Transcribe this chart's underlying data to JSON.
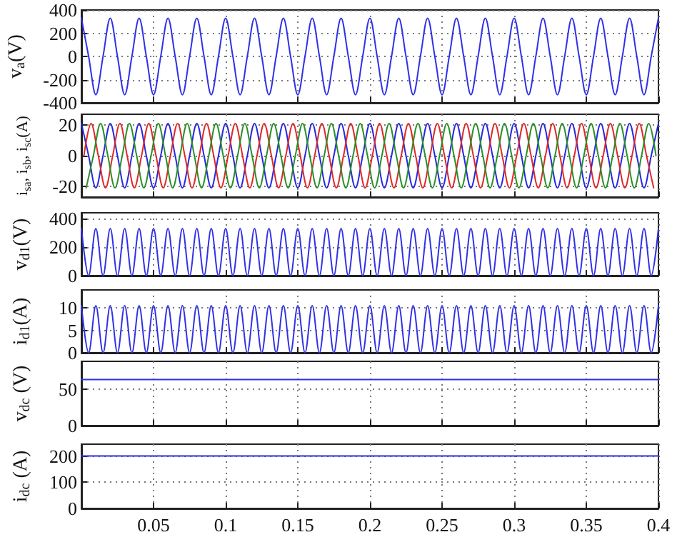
{
  "chart_data": [
    {
      "type": "line",
      "ylabel": "v$_{a}$(V)",
      "xlim": [
        0,
        0.4
      ],
      "xticks": [
        0.05,
        0.1,
        0.15,
        0.2,
        0.25,
        0.3,
        0.35,
        0.4
      ],
      "ylim": [
        -400,
        400
      ],
      "yticks": [
        -400,
        -200,
        0,
        200,
        400
      ],
      "grid": true,
      "tick_labels": "y",
      "line_style": "solid",
      "series": [
        {
          "color": "#3030e8",
          "x": [
            0,
            0.005,
            0.01,
            0.015,
            0.02,
            0.025,
            0.03,
            0.035,
            0.04,
            0.045,
            0.05,
            0.055,
            0.06,
            0.065,
            0.07,
            0.075,
            0.08,
            0.085,
            0.09,
            0.095,
            0.1,
            0.105,
            0.11,
            0.115,
            0.12,
            0.125,
            0.13,
            0.135,
            0.14,
            0.145,
            0.15,
            0.155,
            0.16,
            0.165,
            0.17,
            0.175,
            0.18,
            0.185,
            0.19,
            0.195,
            0.2,
            0.205,
            0.21,
            0.215,
            0.22,
            0.225,
            0.23,
            0.235,
            0.24,
            0.245,
            0.25,
            0.255,
            0.26,
            0.265,
            0.27,
            0.275,
            0.28,
            0.285,
            0.29,
            0.295,
            0.3,
            0.305,
            0.31,
            0.315,
            0.32,
            0.325,
            0.33,
            0.335,
            0.34,
            0.345,
            0.35,
            0.355,
            0.36,
            0.365,
            0.37,
            0.375,
            0.38,
            0.385,
            0.39,
            0.395,
            0.4
          ],
          "values": [
            330,
            0,
            -330,
            0,
            330,
            0,
            -330,
            0,
            330,
            0,
            -330,
            0,
            330,
            0,
            -330,
            0,
            330,
            0,
            -330,
            0,
            330,
            0,
            -330,
            0,
            330,
            0,
            -330,
            0,
            330,
            0,
            -330,
            0,
            330,
            0,
            -330,
            0,
            330,
            0,
            -330,
            0,
            330,
            0,
            -330,
            0,
            330,
            0,
            -330,
            0,
            330,
            0,
            -330,
            0,
            330,
            0,
            -330,
            0,
            330,
            0,
            -330,
            0,
            330,
            0,
            -330,
            0,
            330,
            0,
            -330,
            0,
            330,
            0,
            -330,
            0,
            330,
            0,
            -330,
            0,
            330,
            0,
            -330,
            0,
            330
          ]
        }
      ]
    },
    {
      "type": "line",
      "ylabel": "i$_{sa}$, i$_{sb}$, i$_{sc}$(A)",
      "xlim": [
        0,
        0.4
      ],
      "xticks": [
        0.05,
        0.1,
        0.15,
        0.2,
        0.25,
        0.3,
        0.35,
        0.4
      ],
      "ylim": [
        -27,
        27
      ],
      "yticks": [
        -20,
        0,
        20
      ],
      "grid": true,
      "tick_labels": "y",
      "line_style": "solid",
      "series": [
        {
          "color": "#2828e0",
          "x": [
            0,
            0.005,
            0.01,
            0.015,
            0.02,
            0.025,
            0.03,
            0.035,
            0.04,
            0.045,
            0.05,
            0.055,
            0.06,
            0.065,
            0.07,
            0.075,
            0.08,
            0.085,
            0.09,
            0.095,
            0.1,
            0.105,
            0.11,
            0.115,
            0.12,
            0.125,
            0.13,
            0.135,
            0.14,
            0.145,
            0.15,
            0.155,
            0.16,
            0.165,
            0.17,
            0.175,
            0.18,
            0.185,
            0.19,
            0.195,
            0.2,
            0.205,
            0.21,
            0.215,
            0.22,
            0.225,
            0.23,
            0.235,
            0.24,
            0.245,
            0.25,
            0.255,
            0.26,
            0.265,
            0.27,
            0.275,
            0.28,
            0.285,
            0.29,
            0.295,
            0.3,
            0.305,
            0.31,
            0.315,
            0.32,
            0.325,
            0.33,
            0.335,
            0.34,
            0.345,
            0.35,
            0.355,
            0.36,
            0.365,
            0.37,
            0.375,
            0.38,
            0.385,
            0.39,
            0.395,
            0.4
          ],
          "values": [
            21,
            0,
            -21,
            0,
            21,
            0,
            -21,
            0,
            21,
            0,
            -21,
            0,
            21,
            0,
            -21,
            0,
            21,
            0,
            -21,
            0,
            21,
            0,
            -21,
            0,
            21,
            0,
            -21,
            0,
            21,
            0,
            -21,
            0,
            21,
            0,
            -21,
            0,
            21,
            0,
            -21,
            0,
            21,
            0,
            -21,
            0,
            21,
            0,
            -21,
            0,
            21,
            0,
            -21,
            0,
            21,
            0,
            -21,
            0,
            21,
            0,
            -21,
            0,
            21,
            0,
            -21,
            0,
            21,
            0,
            -21,
            0,
            21,
            0,
            -21,
            0,
            21,
            0,
            -21,
            0,
            21,
            0,
            -21,
            0,
            21
          ]
        },
        {
          "color": "#e02828",
          "x": [
            0.0017,
            0.0067,
            0.0117,
            0.0167,
            0.0217,
            0.0267,
            0.0317,
            0.0367,
            0.0417,
            0.0467,
            0.0517,
            0.0567,
            0.0617,
            0.0667,
            0.0717,
            0.0767,
            0.0817,
            0.0867,
            0.0917,
            0.0967,
            0.1017,
            0.1067,
            0.1117,
            0.1167,
            0.1217,
            0.1267,
            0.1317,
            0.1367,
            0.1417,
            0.1467,
            0.1517,
            0.1567,
            0.1617,
            0.1667,
            0.1717,
            0.1767,
            0.1817,
            0.1867,
            0.1917,
            0.1967,
            0.2017,
            0.2067,
            0.2117,
            0.2167,
            0.2217,
            0.2267,
            0.2317,
            0.2367,
            0.2417,
            0.2467,
            0.2517,
            0.2567,
            0.2617,
            0.2667,
            0.2717,
            0.2767,
            0.2817,
            0.2867,
            0.2917,
            0.2967,
            0.3017,
            0.3067,
            0.3117,
            0.3167,
            0.3217,
            0.3267,
            0.3317,
            0.3367,
            0.3417,
            0.3467,
            0.3517,
            0.3567,
            0.3617,
            0.3667,
            0.3717,
            0.3767,
            0.3817,
            0.3867,
            0.3917,
            0.3967
          ],
          "values": [
            0,
            21,
            0,
            -21,
            0,
            21,
            0,
            -21,
            0,
            21,
            0,
            -21,
            0,
            21,
            0,
            -21,
            0,
            21,
            0,
            -21,
            0,
            21,
            0,
            -21,
            0,
            21,
            0,
            -21,
            0,
            21,
            0,
            -21,
            0,
            21,
            0,
            -21,
            0,
            21,
            0,
            -21,
            0,
            21,
            0,
            -21,
            0,
            21,
            0,
            -21,
            0,
            21,
            0,
            -21,
            0,
            21,
            0,
            -21,
            0,
            21,
            0,
            -21,
            0,
            21,
            0,
            -21,
            0,
            21,
            0,
            -21,
            0,
            21,
            0,
            -21,
            0,
            21,
            0,
            -21,
            0,
            21,
            0,
            -21
          ]
        },
        {
          "color": "#289028",
          "x": [
            0.0033,
            0.0083,
            0.0133,
            0.0183,
            0.0233,
            0.0283,
            0.0333,
            0.0383,
            0.0433,
            0.0483,
            0.0533,
            0.0583,
            0.0633,
            0.0683,
            0.0733,
            0.0783,
            0.0833,
            0.0883,
            0.0933,
            0.0983,
            0.1033,
            0.1083,
            0.1133,
            0.1183,
            0.1233,
            0.1283,
            0.1333,
            0.1383,
            0.1433,
            0.1483,
            0.1533,
            0.1583,
            0.1633,
            0.1683,
            0.1733,
            0.1783,
            0.1833,
            0.1883,
            0.1933,
            0.1983,
            0.2033,
            0.2083,
            0.2133,
            0.2183,
            0.2233,
            0.2283,
            0.2333,
            0.2383,
            0.2433,
            0.2483,
            0.2533,
            0.2583,
            0.2633,
            0.2683,
            0.2733,
            0.2783,
            0.2833,
            0.2883,
            0.2933,
            0.2983,
            0.3033,
            0.3083,
            0.3133,
            0.3183,
            0.3233,
            0.3283,
            0.3333,
            0.3383,
            0.3433,
            0.3483,
            0.3533,
            0.3583,
            0.3633,
            0.3683,
            0.3733,
            0.3783,
            0.3833,
            0.3883,
            0.3933,
            0.3983
          ],
          "values": [
            -21,
            0,
            21,
            0,
            -21,
            0,
            21,
            0,
            -21,
            0,
            21,
            0,
            -21,
            0,
            21,
            0,
            -21,
            0,
            21,
            0,
            -21,
            0,
            21,
            0,
            -21,
            0,
            21,
            0,
            -21,
            0,
            21,
            0,
            -21,
            0,
            21,
            0,
            -21,
            0,
            21,
            0,
            -21,
            0,
            21,
            0,
            -21,
            0,
            21,
            0,
            -21,
            0,
            21,
            0,
            -21,
            0,
            21,
            0,
            -21,
            0,
            21,
            0,
            -21,
            0,
            21,
            0,
            -21,
            0,
            21,
            0,
            -21,
            0,
            21,
            0,
            -21,
            0,
            21,
            0,
            -21,
            0,
            21,
            0
          ]
        }
      ]
    },
    {
      "type": "line",
      "ylabel": "v$_{d1}$(V)",
      "xlim": [
        0,
        0.4
      ],
      "xticks": [
        0.05,
        0.1,
        0.15,
        0.2,
        0.25,
        0.3,
        0.35,
        0.4
      ],
      "ylim": [
        0,
        440
      ],
      "yticks": [
        0,
        200,
        400
      ],
      "grid": true,
      "tick_labels": "y",
      "line_style": "solid",
      "series": [
        {
          "color": "#3030e8",
          "x": [
            0,
            0.005,
            0.01,
            0.015,
            0.02,
            0.025,
            0.03,
            0.035,
            0.04,
            0.045,
            0.05,
            0.055,
            0.06,
            0.065,
            0.07,
            0.075,
            0.08,
            0.085,
            0.09,
            0.095,
            0.1,
            0.105,
            0.11,
            0.115,
            0.12,
            0.125,
            0.13,
            0.135,
            0.14,
            0.145,
            0.15,
            0.155,
            0.16,
            0.165,
            0.17,
            0.175,
            0.18,
            0.185,
            0.19,
            0.195,
            0.2,
            0.205,
            0.21,
            0.215,
            0.22,
            0.225,
            0.23,
            0.235,
            0.24,
            0.245,
            0.25,
            0.255,
            0.26,
            0.265,
            0.27,
            0.275,
            0.28,
            0.285,
            0.29,
            0.295,
            0.3,
            0.305,
            0.31,
            0.315,
            0.32,
            0.325,
            0.33,
            0.335,
            0.34,
            0.345,
            0.35,
            0.355,
            0.36,
            0.365,
            0.37,
            0.375,
            0.38,
            0.385,
            0.39,
            0.395,
            0.4
          ],
          "values": [
            330,
            0,
            330,
            0,
            330,
            0,
            330,
            0,
            330,
            0,
            330,
            0,
            330,
            0,
            330,
            0,
            330,
            0,
            330,
            0,
            330,
            0,
            330,
            0,
            330,
            0,
            330,
            0,
            330,
            0,
            330,
            0,
            330,
            0,
            330,
            0,
            330,
            0,
            330,
            0,
            330,
            0,
            330,
            0,
            330,
            0,
            330,
            0,
            330,
            0,
            330,
            0,
            330,
            0,
            330,
            0,
            330,
            0,
            330,
            0,
            330,
            0,
            330,
            0,
            330,
            0,
            330,
            0,
            330,
            0,
            330,
            0,
            330,
            0,
            330,
            0,
            330,
            0,
            330,
            0,
            330
          ]
        }
      ]
    },
    {
      "type": "line",
      "ylabel": "i$_{d1}$(A)",
      "xlim": [
        0,
        0.4
      ],
      "xticks": [
        0.05,
        0.1,
        0.15,
        0.2,
        0.25,
        0.3,
        0.35,
        0.4
      ],
      "ylim": [
        0,
        14
      ],
      "yticks": [
        0,
        5,
        10
      ],
      "grid": true,
      "tick_labels": "y",
      "line_style": "solid",
      "series": [
        {
          "color": "#3030e8",
          "x": [
            0,
            0.005,
            0.01,
            0.015,
            0.02,
            0.025,
            0.03,
            0.035,
            0.04,
            0.045,
            0.05,
            0.055,
            0.06,
            0.065,
            0.07,
            0.075,
            0.08,
            0.085,
            0.09,
            0.095,
            0.1,
            0.105,
            0.11,
            0.115,
            0.12,
            0.125,
            0.13,
            0.135,
            0.14,
            0.145,
            0.15,
            0.155,
            0.16,
            0.165,
            0.17,
            0.175,
            0.18,
            0.185,
            0.19,
            0.195,
            0.2,
            0.205,
            0.21,
            0.215,
            0.22,
            0.225,
            0.23,
            0.235,
            0.24,
            0.245,
            0.25,
            0.255,
            0.26,
            0.265,
            0.27,
            0.275,
            0.28,
            0.285,
            0.29,
            0.295,
            0.3,
            0.305,
            0.31,
            0.315,
            0.32,
            0.325,
            0.33,
            0.335,
            0.34,
            0.345,
            0.35,
            0.355,
            0.36,
            0.365,
            0.37,
            0.375,
            0.38,
            0.385,
            0.39,
            0.395,
            0.4
          ],
          "values": [
            10.5,
            0,
            10.5,
            0,
            10.5,
            0,
            10.5,
            0,
            10.5,
            0,
            10.5,
            0,
            10.5,
            0,
            10.5,
            0,
            10.5,
            0,
            10.5,
            0,
            10.5,
            0,
            10.5,
            0,
            10.5,
            0,
            10.5,
            0,
            10.5,
            0,
            10.5,
            0,
            10.5,
            0,
            10.5,
            0,
            10.5,
            0,
            10.5,
            0,
            10.5,
            0,
            10.5,
            0,
            10.5,
            0,
            10.5,
            0,
            10.5,
            0,
            10.5,
            0,
            10.5,
            0,
            10.5,
            0,
            10.5,
            0,
            10.5,
            0,
            10.5,
            0,
            10.5,
            0,
            10.5,
            0,
            10.5,
            0,
            10.5,
            0,
            10.5,
            0,
            10.5,
            0,
            10.5,
            0,
            10.5,
            0,
            10.5,
            0,
            10.5
          ]
        }
      ]
    },
    {
      "type": "line",
      "ylabel": "v$_{dc}$ (V)",
      "xlim": [
        0,
        0.4
      ],
      "xticks": [
        0.05,
        0.1,
        0.15,
        0.2,
        0.25,
        0.3,
        0.35,
        0.4
      ],
      "ylim": [
        0,
        88
      ],
      "yticks": [
        0,
        50
      ],
      "grid": true,
      "tick_labels": "y",
      "line_style": "solid",
      "series": [
        {
          "color": "#3030e8",
          "x": [
            0,
            0.4
          ],
          "values": [
            63,
            63
          ]
        }
      ]
    },
    {
      "type": "line",
      "ylabel": "i$_{dc}$ (A)",
      "xlim": [
        0,
        0.4
      ],
      "xticks": [
        0.05,
        0.1,
        0.15,
        0.2,
        0.25,
        0.3,
        0.35,
        0.4
      ],
      "ylim": [
        0,
        245
      ],
      "yticks": [
        0,
        100,
        200
      ],
      "grid": true,
      "line_style": "solid",
      "series": [
        {
          "color": "#3030e8",
          "x": [
            0,
            0.4
          ],
          "values": [
            200,
            200
          ]
        }
      ]
    }
  ]
}
